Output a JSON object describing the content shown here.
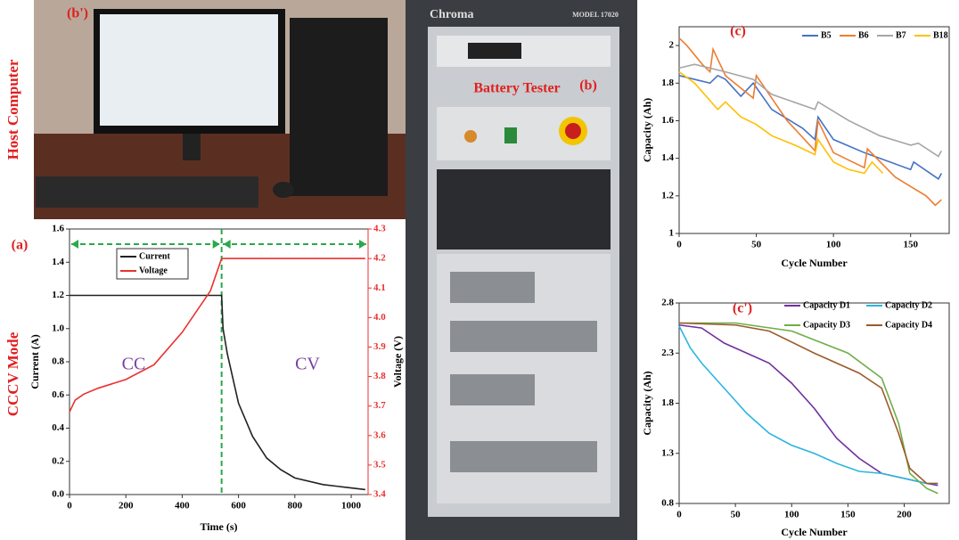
{
  "photos": {
    "host": {
      "label": "(b')",
      "title": "Host Computer"
    },
    "tester": {
      "brand": "Chroma",
      "model": "MODEL 17020",
      "title": "Battery Tester",
      "label": "(b)"
    }
  },
  "side_label": "CCCV Mode",
  "chart_data": [
    {
      "type": "line",
      "label": "(a)",
      "x_label": "Time (s)",
      "y_label": "Current (A)",
      "y2_label": "Voltage (V)",
      "annotations": [
        "CC",
        "CV"
      ],
      "phase_boundary": 540,
      "grid": false,
      "legend": "upper left",
      "xlim": [
        0,
        1060
      ],
      "xticks": [
        0,
        200,
        400,
        600,
        800,
        1000
      ],
      "ylim": [
        0,
        1.6
      ],
      "yticks": [
        {
          "value": 0,
          "label": "0.0"
        },
        0.2,
        0.4,
        0.6,
        0.8,
        {
          "value": 1,
          "label": "1.0"
        },
        1.2,
        1.4,
        1.6
      ],
      "y2lim": [
        3.4,
        4.3
      ],
      "y2ticks": [
        3.4,
        3.5,
        3.6,
        3.7,
        3.8,
        3.9,
        {
          "value": 4,
          "label": "4.0"
        },
        4.1,
        4.2,
        4.3
      ],
      "series": [
        {
          "name": "Current",
          "color": "#222222",
          "x": [
            0,
            540,
            545,
            560,
            600,
            650,
            700,
            750,
            800,
            900,
            1000,
            1050
          ],
          "values": [
            1.2,
            1.2,
            1.0,
            0.85,
            0.55,
            0.35,
            0.22,
            0.15,
            0.1,
            0.06,
            0.04,
            0.03
          ]
        },
        {
          "name": "Voltage",
          "color": "#e8312f",
          "axis": "y2",
          "x": [
            0,
            20,
            50,
            100,
            200,
            300,
            400,
            500,
            540,
            1050
          ],
          "values": [
            3.68,
            3.72,
            3.74,
            3.76,
            3.79,
            3.84,
            3.95,
            4.09,
            4.2,
            4.2
          ]
        }
      ]
    },
    {
      "type": "line",
      "label": "(c)",
      "x_label": "Cycle Number",
      "y_label": "Capacity (Ah)",
      "grid": false,
      "legend": "upper right",
      "xlim": [
        0,
        175
      ],
      "xticks": [
        0,
        50,
        100,
        150
      ],
      "ylim": [
        1,
        2.1
      ],
      "yticks": [
        1,
        1.2,
        1.4,
        1.6,
        1.8,
        2
      ],
      "series": [
        {
          "name": "B5",
          "color": "#4472c4",
          "x": [
            0,
            10,
            20,
            25,
            30,
            40,
            48,
            60,
            80,
            88,
            90,
            100,
            120,
            150,
            152,
            168,
            170
          ],
          "values": [
            1.84,
            1.82,
            1.8,
            1.84,
            1.82,
            1.73,
            1.8,
            1.66,
            1.56,
            1.5,
            1.62,
            1.5,
            1.43,
            1.34,
            1.38,
            1.29,
            1.32
          ]
        },
        {
          "name": "B6",
          "color": "#ed7d31",
          "x": [
            0,
            5,
            15,
            20,
            22,
            30,
            48,
            50,
            70,
            88,
            90,
            100,
            120,
            122,
            140,
            150,
            160,
            166,
            170
          ],
          "values": [
            2.04,
            2.0,
            1.9,
            1.86,
            1.98,
            1.84,
            1.72,
            1.84,
            1.6,
            1.44,
            1.6,
            1.43,
            1.35,
            1.45,
            1.3,
            1.25,
            1.2,
            1.15,
            1.18
          ]
        },
        {
          "name": "B7",
          "color": "#a5a5a5",
          "x": [
            0,
            10,
            30,
            48,
            60,
            88,
            90,
            110,
            130,
            150,
            155,
            168,
            170
          ],
          "values": [
            1.88,
            1.9,
            1.86,
            1.82,
            1.74,
            1.66,
            1.7,
            1.6,
            1.52,
            1.47,
            1.48,
            1.41,
            1.44
          ]
        },
        {
          "name": "B18",
          "color": "#ffc000",
          "x": [
            0,
            10,
            25,
            30,
            40,
            50,
            60,
            75,
            88,
            90,
            100,
            110,
            120,
            125,
            132
          ],
          "values": [
            1.86,
            1.8,
            1.66,
            1.7,
            1.62,
            1.58,
            1.52,
            1.47,
            1.42,
            1.5,
            1.38,
            1.34,
            1.32,
            1.38,
            1.32
          ]
        }
      ]
    },
    {
      "type": "line",
      "label": "(c')",
      "x_label": "Cycle Number",
      "y_label": "Capacity (Ah)",
      "grid": false,
      "legend": "upper center",
      "xlim": [
        0,
        240
      ],
      "xticks": [
        0,
        50,
        100,
        150,
        200
      ],
      "ylim": [
        0.8,
        2.8
      ],
      "yticks": [
        0.8,
        1.3,
        1.8,
        2.3,
        2.8
      ],
      "series": [
        {
          "name": "Capacity D1",
          "color": "#7030a0",
          "x": [
            0,
            20,
            40,
            60,
            80,
            100,
            120,
            140,
            160,
            180,
            200,
            220,
            230
          ],
          "values": [
            2.58,
            2.55,
            2.4,
            2.3,
            2.2,
            2.0,
            1.75,
            1.45,
            1.25,
            1.1,
            1.05,
            1.0,
            0.98
          ]
        },
        {
          "name": "Capacity D2",
          "color": "#2cb5e0",
          "x": [
            0,
            10,
            20,
            40,
            60,
            80,
            100,
            120,
            140,
            160,
            180,
            200,
            220,
            230
          ],
          "values": [
            2.57,
            2.35,
            2.2,
            1.95,
            1.7,
            1.5,
            1.38,
            1.3,
            1.2,
            1.12,
            1.1,
            1.05,
            1.0,
            1.0
          ]
        },
        {
          "name": "Capacity D3",
          "color": "#70ad47",
          "x": [
            0,
            50,
            100,
            150,
            180,
            195,
            205,
            220,
            230
          ],
          "values": [
            2.6,
            2.6,
            2.52,
            2.3,
            2.05,
            1.6,
            1.1,
            0.95,
            0.9
          ]
        },
        {
          "name": "Capacity D4",
          "color": "#9c5a2c",
          "x": [
            0,
            50,
            80,
            120,
            160,
            180,
            195,
            205,
            220,
            230
          ],
          "values": [
            2.6,
            2.58,
            2.52,
            2.3,
            2.1,
            1.95,
            1.5,
            1.15,
            1.0,
            1.0
          ]
        }
      ]
    }
  ]
}
